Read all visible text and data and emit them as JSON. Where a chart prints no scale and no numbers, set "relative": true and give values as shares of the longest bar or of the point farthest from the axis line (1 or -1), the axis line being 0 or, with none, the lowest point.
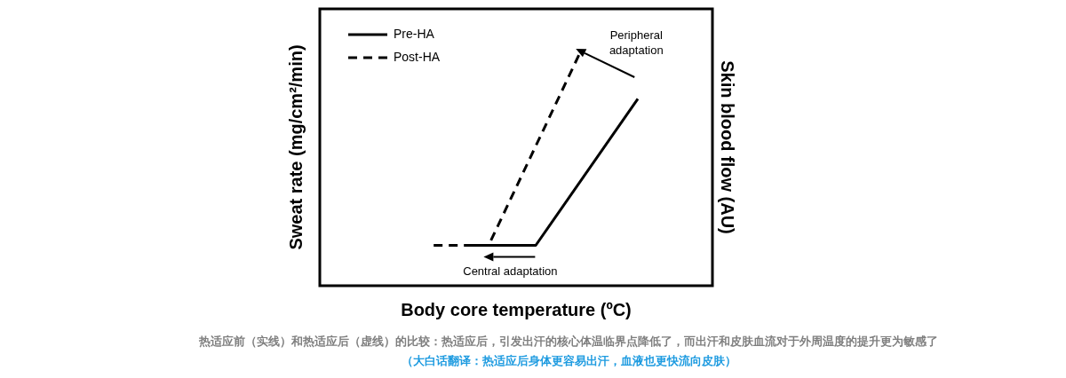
{
  "chart_data": {
    "type": "line",
    "relative": true,
    "grid": false,
    "legend": "top left",
    "marker": "none",
    "xlabel": "Body core temperature (ºC)",
    "ylabel": "Sweat rate (mg/cm²/min)",
    "y2label": "Skin blood flow (AU)",
    "categories": [
      null,
      null,
      null,
      null,
      null,
      null,
      null,
      null,
      null,
      null,
      null,
      null,
      null,
      null,
      null,
      null,
      null,
      null,
      null,
      null,
      null,
      null,
      null,
      null,
      null,
      null,
      null,
      null,
      null,
      null,
      null,
      null,
      null,
      null,
      null,
      null,
      null,
      null,
      null,
      null,
      null,
      null,
      null,
      null,
      null,
      null,
      null,
      null,
      null,
      null,
      null,
      null,
      null,
      null,
      null,
      null,
      null,
      null,
      null,
      null,
      null,
      null,
      null,
      null,
      null,
      null,
      null,
      null,
      null,
      null,
      null,
      null,
      null,
      null,
      null,
      null,
      null,
      null,
      null,
      null,
      null,
      null,
      null,
      null,
      null,
      null,
      null,
      null,
      null,
      null,
      null,
      null,
      null,
      null,
      null,
      null,
      null,
      null,
      null,
      null,
      null
    ],
    "series": [
      {
        "name": "Pre-HA",
        "color": "#000000",
        "line_style": "solid",
        "values": [
          null,
          null,
          null,
          null,
          null,
          null,
          null,
          null,
          null,
          null,
          null,
          null,
          null,
          null,
          null,
          null,
          null,
          null,
          null,
          null,
          null,
          null,
          null,
          null,
          null,
          null,
          null,
          null,
          null,
          null,
          null,
          null,
          null,
          null,
          null,
          null,
          null,
          0.175,
          null,
          null,
          null,
          null,
          null,
          null,
          null,
          null,
          null,
          null,
          null,
          null,
          null,
          null,
          null,
          null,
          null,
          0.175,
          null,
          null,
          null,
          null,
          null,
          null,
          null,
          null,
          null,
          null,
          null,
          null,
          null,
          null,
          null,
          null,
          null,
          null,
          null,
          null,
          null,
          null,
          null,
          null,
          null,
          0.81,
          null,
          null,
          null,
          null,
          null,
          null,
          null,
          null,
          null,
          null,
          null,
          null,
          null,
          null,
          null,
          null,
          null,
          null,
          null
        ]
      },
      {
        "name": "Post-HA",
        "color": "#000000",
        "line_style": "dashed",
        "values": [
          null,
          null,
          null,
          null,
          null,
          null,
          null,
          null,
          null,
          null,
          null,
          null,
          null,
          null,
          null,
          null,
          null,
          null,
          null,
          null,
          null,
          null,
          null,
          null,
          null,
          null,
          null,
          null,
          null,
          0.175,
          null,
          null,
          null,
          null,
          null,
          null,
          null,
          null,
          null,
          null,
          null,
          null,
          null,
          0.175,
          null,
          null,
          null,
          null,
          null,
          null,
          null,
          null,
          null,
          null,
          null,
          null,
          null,
          null,
          null,
          null,
          null,
          null,
          null,
          null,
          null,
          null,
          1,
          null,
          null,
          null,
          null,
          null,
          null,
          null,
          null,
          null,
          null,
          null,
          null,
          null,
          null,
          null,
          null,
          null,
          null,
          null,
          null,
          null,
          null,
          null,
          null,
          null,
          null,
          null,
          null,
          null,
          null,
          null,
          null,
          null,
          null
        ]
      }
    ],
    "annotations": [
      "Peripheral adaptation",
      "Central adaptation",
      "热适应前（实线）和热适应后（虚线）的比较：热适应后，引发出汗的核心体温临界点降低了，而出汗和皮肤血流对于外周温度的提升更为敏感了",
      "（大白话翻译：热适应后身体更容易出汗，血液也更快流向皮肤）"
    ]
  }
}
